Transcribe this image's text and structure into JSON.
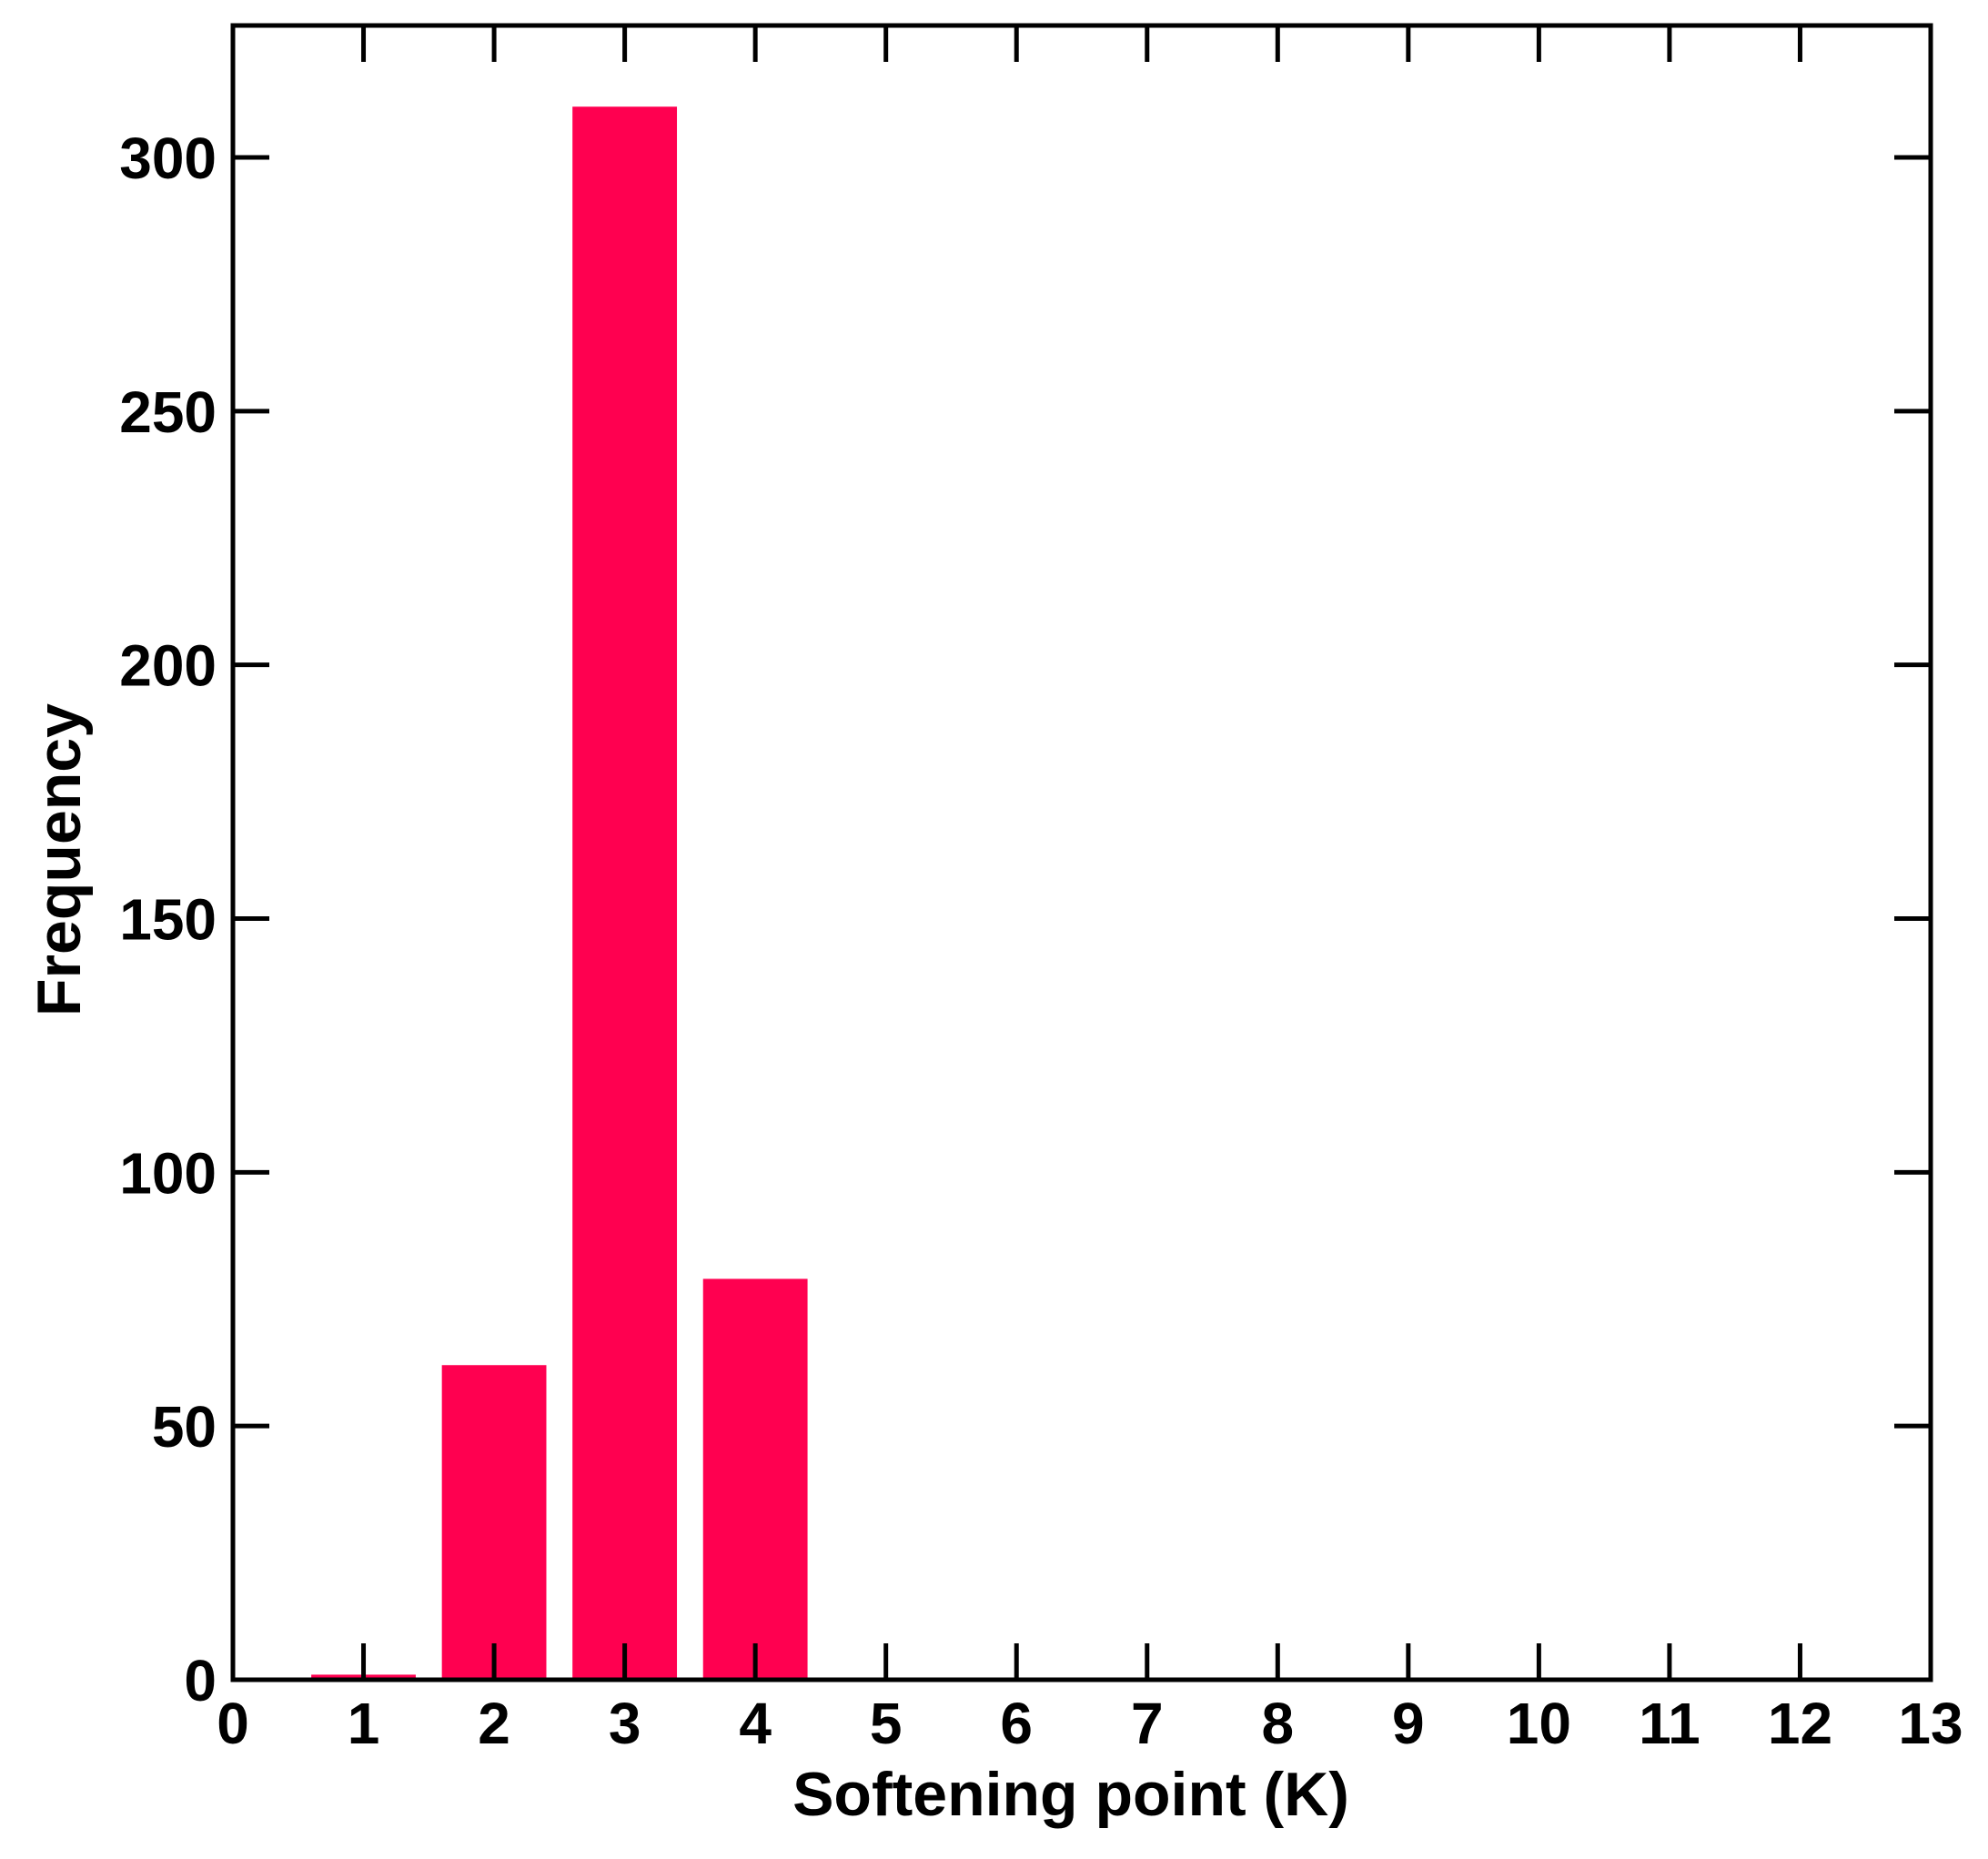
{
  "chart_data": {
    "type": "bar",
    "xlabel": "Softening point (K)",
    "ylabel": "Frequency",
    "categories": [
      1,
      2,
      3,
      4
    ],
    "values": [
      1,
      62,
      310,
      79
    ],
    "bar_color": "#ff0050",
    "xlim": [
      0,
      13
    ],
    "ylim": [
      0,
      326
    ],
    "xticks": [
      "0",
      "1",
      "2",
      "3",
      "4",
      "5",
      "6",
      "7",
      "8",
      "9",
      "10",
      "11",
      "12",
      "13"
    ],
    "yticks": [
      "0",
      "50",
      "100",
      "150",
      "200",
      "250",
      "300"
    ],
    "grid": false,
    "legend": "none"
  }
}
